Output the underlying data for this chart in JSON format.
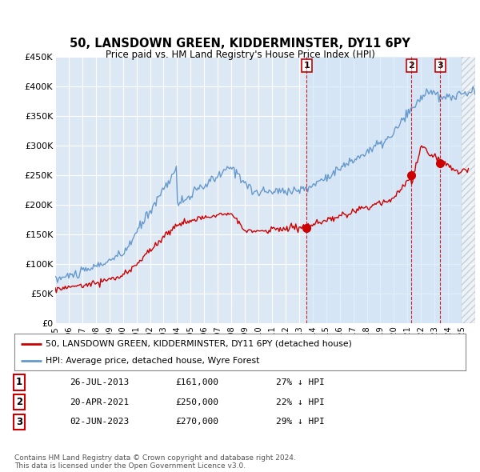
{
  "title": "50, LANSDOWN GREEN, KIDDERMINSTER, DY11 6PY",
  "subtitle": "Price paid vs. HM Land Registry's House Price Index (HPI)",
  "ylabel_ticks": [
    "£0",
    "£50K",
    "£100K",
    "£150K",
    "£200K",
    "£250K",
    "£300K",
    "£350K",
    "£400K",
    "£450K"
  ],
  "ylim": [
    0,
    450000
  ],
  "xlim_start": 1995.0,
  "xlim_end": 2026.0,
  "hpi_color": "#6699cc",
  "price_color": "#cc0000",
  "marker_color": "#cc0000",
  "vline_color": "#cc0000",
  "background_color": "#dde8f5",
  "grid_color": "#ffffff",
  "shade_start": 2013.57,
  "shade_color": "#cce0f5",
  "transaction_dates": [
    2013.57,
    2021.3,
    2023.42
  ],
  "transaction_prices": [
    161000,
    250000,
    270000
  ],
  "transaction_labels": [
    "1",
    "2",
    "3"
  ],
  "legend_entry1": "50, LANSDOWN GREEN, KIDDERMINSTER, DY11 6PY (detached house)",
  "legend_entry2": "HPI: Average price, detached house, Wyre Forest",
  "table_rows": [
    [
      "1",
      "26-JUL-2013",
      "£161,000",
      "27% ↓ HPI"
    ],
    [
      "2",
      "20-APR-2021",
      "£250,000",
      "22% ↓ HPI"
    ],
    [
      "3",
      "02-JUN-2023",
      "£270,000",
      "29% ↓ HPI"
    ]
  ],
  "footer": "Contains HM Land Registry data © Crown copyright and database right 2024.\nThis data is licensed under the Open Government Licence v3.0."
}
